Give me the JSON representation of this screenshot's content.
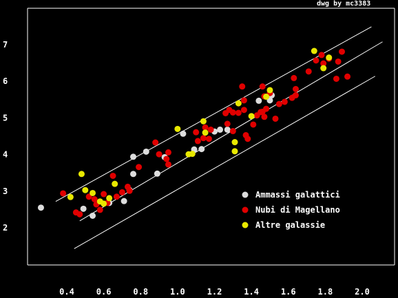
{
  "credit": "dwg by mc3383",
  "colors": {
    "background": "#000000",
    "frame": "#ffffff",
    "lines": "#ffffff"
  },
  "chart_data": {
    "type": "scatter",
    "title": "",
    "xlabel": "",
    "ylabel": "",
    "xlim": [
      0.28,
      2.17
    ],
    "ylim": [
      1.0,
      7.8
    ],
    "x_ticks": [
      0.4,
      0.6,
      0.8,
      1.0,
      1.2,
      1.4,
      1.6,
      1.8,
      2.0
    ],
    "x_tick_labels": [
      "0.4",
      "0.6",
      "0.8",
      "1.0",
      "1.2",
      "1.4",
      "1.6",
      "1.8",
      "2.0"
    ],
    "y_ticks": [
      2,
      3,
      4,
      5,
      6,
      7
    ],
    "y_tick_labels": [
      "2",
      "3",
      "4",
      "5",
      "6",
      "7"
    ],
    "grid": false,
    "legend_position": "bottom-right",
    "series": [
      {
        "name": "Ammassi galattici",
        "color": "#dddddd",
        "points": [
          [
            0.26,
            2.55
          ],
          [
            0.49,
            2.52
          ],
          [
            0.54,
            2.33
          ],
          [
            0.63,
            2.68
          ],
          [
            0.71,
            2.73
          ],
          [
            0.74,
            3.03
          ],
          [
            0.76,
            3.47
          ],
          [
            0.76,
            3.94
          ],
          [
            0.83,
            4.08
          ],
          [
            0.89,
            3.48
          ],
          [
            0.93,
            3.93
          ],
          [
            1.03,
            4.57
          ],
          [
            1.09,
            4.14
          ],
          [
            1.13,
            4.15
          ],
          [
            1.2,
            4.63
          ],
          [
            1.23,
            4.68
          ],
          [
            1.27,
            4.68
          ],
          [
            1.44,
            5.47
          ],
          [
            1.5,
            5.48
          ],
          [
            1.51,
            5.62
          ]
        ]
      },
      {
        "name": "Nubi di Magellano",
        "color": "#e00000",
        "points": [
          [
            0.38,
            2.94
          ],
          [
            0.45,
            2.42
          ],
          [
            0.47,
            2.37
          ],
          [
            0.52,
            2.85
          ],
          [
            0.55,
            2.78
          ],
          [
            0.56,
            2.64
          ],
          [
            0.58,
            2.49
          ],
          [
            0.6,
            2.92
          ],
          [
            0.62,
            2.68
          ],
          [
            0.65,
            3.42
          ],
          [
            0.67,
            2.85
          ],
          [
            0.7,
            2.97
          ],
          [
            0.73,
            3.12
          ],
          [
            0.74,
            3.01
          ],
          [
            0.79,
            3.66
          ],
          [
            0.88,
            4.33
          ],
          [
            0.9,
            4.01
          ],
          [
            0.94,
            3.88
          ],
          [
            0.95,
            4.06
          ],
          [
            0.95,
            3.73
          ],
          [
            1.1,
            4.61
          ],
          [
            1.11,
            4.37
          ],
          [
            1.14,
            4.45
          ],
          [
            1.15,
            4.74
          ],
          [
            1.17,
            4.43
          ],
          [
            1.18,
            4.68
          ],
          [
            1.26,
            5.13
          ],
          [
            1.27,
            4.84
          ],
          [
            1.28,
            5.22
          ],
          [
            1.3,
            5.15
          ],
          [
            1.3,
            4.64
          ],
          [
            1.33,
            5.14
          ],
          [
            1.35,
            5.86
          ],
          [
            1.36,
            5.48
          ],
          [
            1.36,
            5.22
          ],
          [
            1.37,
            4.53
          ],
          [
            1.38,
            4.43
          ],
          [
            1.41,
            4.82
          ],
          [
            1.43,
            5.07
          ],
          [
            1.45,
            5.16
          ],
          [
            1.46,
            5.86
          ],
          [
            1.46,
            5.17
          ],
          [
            1.47,
            5.59
          ],
          [
            1.47,
            5.03
          ],
          [
            1.48,
            5.25
          ],
          [
            1.5,
            5.68
          ],
          [
            1.53,
            4.98
          ],
          [
            1.55,
            5.38
          ],
          [
            1.58,
            5.44
          ],
          [
            1.62,
            5.55
          ],
          [
            1.63,
            6.09
          ],
          [
            1.64,
            5.62
          ],
          [
            1.64,
            5.79
          ],
          [
            1.71,
            6.27
          ],
          [
            1.75,
            6.57
          ],
          [
            1.78,
            6.72
          ],
          [
            1.79,
            6.49
          ],
          [
            1.82,
            6.62
          ],
          [
            1.86,
            6.07
          ],
          [
            1.87,
            6.54
          ],
          [
            1.89,
            6.81
          ],
          [
            1.92,
            6.13
          ]
        ]
      },
      {
        "name": "Altre galassie",
        "color": "#e8e800",
        "points": [
          [
            0.42,
            2.84
          ],
          [
            0.48,
            3.47
          ],
          [
            0.5,
            3.03
          ],
          [
            0.54,
            2.95
          ],
          [
            0.58,
            2.72
          ],
          [
            0.6,
            2.66
          ],
          [
            0.63,
            2.81
          ],
          [
            0.66,
            3.2
          ],
          [
            1.0,
            4.7
          ],
          [
            1.06,
            4.01
          ],
          [
            1.08,
            4.02
          ],
          [
            1.14,
            4.91
          ],
          [
            1.15,
            4.6
          ],
          [
            1.31,
            4.34
          ],
          [
            1.31,
            4.09
          ],
          [
            1.33,
            5.4
          ],
          [
            1.4,
            5.05
          ],
          [
            1.48,
            5.58
          ],
          [
            1.5,
            5.76
          ],
          [
            1.74,
            6.83
          ],
          [
            1.79,
            6.36
          ],
          [
            1.82,
            6.65
          ]
        ]
      }
    ],
    "reference_lines": [
      {
        "x1": 0.34,
        "y1": 2.72,
        "x2": 2.05,
        "y2": 7.49
      },
      {
        "x1": 0.47,
        "y1": 2.19,
        "x2": 2.11,
        "y2": 7.08
      },
      {
        "x1": 0.44,
        "y1": 1.43,
        "x2": 2.07,
        "y2": 6.14
      }
    ]
  }
}
